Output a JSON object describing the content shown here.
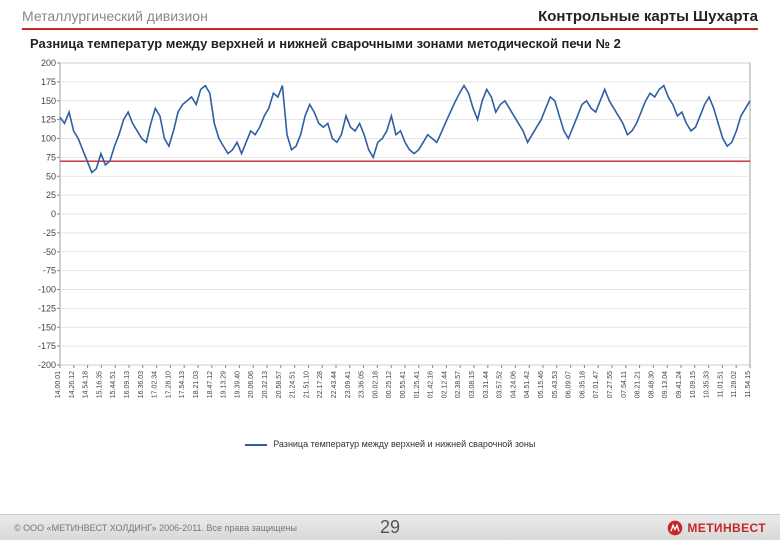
{
  "header": {
    "left": "Металлургический дивизион",
    "right": "Контрольные карты Шухарта"
  },
  "subtitle": "Разница температур между верхней и нижней сварочными зонами методической печи № 2",
  "chart": {
    "type": "line",
    "background_color": "#ffffff",
    "grid_color": "#dddddd",
    "axis_color": "#888888",
    "ylim": [
      -200,
      200
    ],
    "ytick_step": 25,
    "yticks": [
      -200,
      -175,
      -150,
      -125,
      -100,
      -75,
      -50,
      -25,
      0,
      25,
      50,
      75,
      100,
      125,
      150,
      175,
      200
    ],
    "xlabels": [
      "14.00.01",
      "14.26.12",
      "14.54.18",
      "15.16.35",
      "15.44.51",
      "16.09.13",
      "16.36.03",
      "17.02.34",
      "17.28.10",
      "17.54.13",
      "18.21.03",
      "18.47.12",
      "19.13.29",
      "19.39.40",
      "20.06.06",
      "20.32.13",
      "20.58.57",
      "21.24.51",
      "21.51.10",
      "22.17.28",
      "22.43.44",
      "23.09.41",
      "23.36.05",
      "00.02.18",
      "00.25.12",
      "00.55.41",
      "01.25.41",
      "01.42.16",
      "02.12.44",
      "02.38.57",
      "03.08.15",
      "03.31.44",
      "03.57.52",
      "04.24.06",
      "04.51.42",
      "05.15.46",
      "05.43.53",
      "06.09.07",
      "06.35.18",
      "07.01.47",
      "07.27.55",
      "07.54.11",
      "08.21.21",
      "08.48.30",
      "09.13.04",
      "09.41.24",
      "10.09.15",
      "10.35.33",
      "11.01.51",
      "11.28.02",
      "11.54.15"
    ],
    "limit_line": {
      "value": 70,
      "color": "#c62828"
    },
    "series": {
      "label": "Разница температур между верхней и нижней сварочной зоны",
      "color": "#2f5fa3",
      "values": [
        128,
        120,
        135,
        110,
        100,
        85,
        70,
        55,
        60,
        80,
        65,
        70,
        90,
        105,
        125,
        135,
        120,
        110,
        100,
        95,
        120,
        140,
        130,
        100,
        90,
        110,
        135,
        145,
        150,
        155,
        145,
        165,
        170,
        160,
        120,
        100,
        90,
        80,
        85,
        95,
        80,
        95,
        110,
        105,
        115,
        130,
        140,
        160,
        155,
        170,
        105,
        85,
        90,
        105,
        130,
        145,
        135,
        120,
        115,
        120,
        100,
        95,
        105,
        130,
        115,
        110,
        120,
        105,
        85,
        75,
        95,
        100,
        110,
        130,
        105,
        110,
        95,
        85,
        80,
        85,
        95,
        105,
        100,
        95,
        108,
        122,
        135,
        148,
        160,
        170,
        160,
        140,
        125,
        150,
        165,
        155,
        135,
        145,
        150,
        140,
        130,
        120,
        110,
        95,
        105,
        115,
        125,
        140,
        155,
        150,
        130,
        110,
        100,
        115,
        130,
        145,
        150,
        140,
        135,
        150,
        165,
        150,
        140,
        130,
        120,
        105,
        110,
        120,
        135,
        150,
        160,
        155,
        165,
        170,
        155,
        145,
        130,
        135,
        120,
        110,
        115,
        130,
        145,
        155,
        140,
        120,
        100,
        90,
        95,
        110,
        130,
        140,
        150
      ]
    }
  },
  "legend_label": "Разница температур между верхней и нижней сварочной зоны",
  "footer": {
    "copyright": "© ООО «МЕТИНВЕСТ ХОЛДИНГ» 2006-2011. Все права защищены",
    "page": "29",
    "brand": "МЕТИНВЕСТ",
    "brand_color": "#c62828"
  }
}
